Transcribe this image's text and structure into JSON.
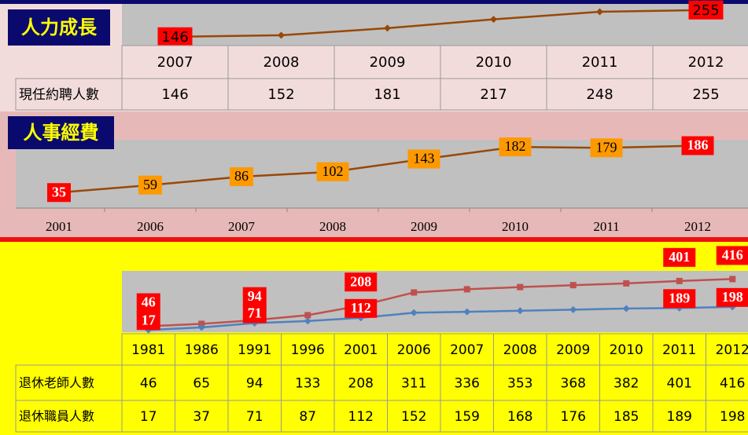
{
  "chart_data": [
    {
      "type": "line",
      "title": "人力成長",
      "categories": [
        "2007",
        "2008",
        "2009",
        "2010",
        "2011",
        "2012"
      ],
      "series": [
        {
          "name": "現任約聘人數",
          "color": "#984807",
          "values": [
            146,
            152,
            181,
            217,
            248,
            255
          ]
        }
      ],
      "ylim": [
        110,
        280
      ],
      "value_label_indices": [
        0,
        5
      ],
      "value_label_color": "#ff0000"
    },
    {
      "type": "line",
      "title": "人事經費",
      "categories": [
        "2001",
        "2006",
        "2007",
        "2008",
        "2009",
        "2010",
        "2011",
        "2012"
      ],
      "series": [
        {
          "color": "#984807",
          "values": [
            35,
            59,
            86,
            102,
            143,
            182,
            179,
            186
          ]
        }
      ],
      "ylim": [
        -15,
        205
      ],
      "value_label_indices": [
        0,
        1,
        2,
        3,
        4,
        5,
        6,
        7
      ],
      "value_label_color": "#ff9900"
    },
    {
      "type": "line",
      "categories": [
        "1981",
        "1986",
        "1991",
        "1996",
        "2001",
        "2006",
        "2007",
        "2008",
        "2009",
        "2010",
        "2011",
        "2012"
      ],
      "series": [
        {
          "name": "退休老師人數",
          "color": "#c0504d",
          "values": [
            46,
            65,
            94,
            133,
            208,
            311,
            336,
            353,
            368,
            382,
            401,
            416
          ]
        },
        {
          "name": "退休職員人數",
          "color": "#4f81bd",
          "values": [
            17,
            37,
            71,
            87,
            112,
            152,
            159,
            168,
            176,
            185,
            189,
            198
          ]
        }
      ],
      "ylim": [
        0,
        480
      ],
      "value_label_indices": [
        0,
        2,
        4,
        10,
        11
      ],
      "value_label_color": "#ff0000"
    }
  ]
}
